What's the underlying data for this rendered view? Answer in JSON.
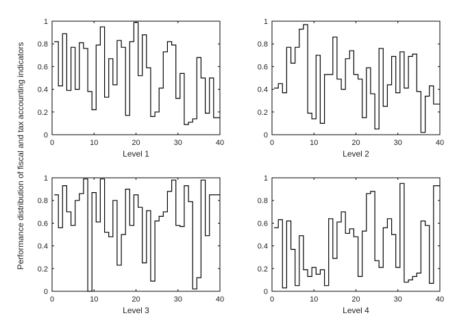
{
  "figure": {
    "ylabel": "Performance distribution of fiscal and tax accounting indicators"
  },
  "chart_data": [
    {
      "type": "line",
      "xlabel": "Level 1",
      "xlim": [
        0,
        40
      ],
      "ylim": [
        0,
        1
      ],
      "xticks": [
        0,
        10,
        20,
        30,
        40
      ],
      "yticks": [
        0,
        0.2,
        0.4,
        0.6,
        0.8,
        1
      ],
      "step": true,
      "x": [
        1,
        2,
        3,
        4,
        5,
        6,
        7,
        8,
        9,
        10,
        11,
        12,
        13,
        14,
        15,
        16,
        17,
        18,
        19,
        20,
        21,
        22,
        23,
        24,
        25,
        26,
        27,
        28,
        29,
        30,
        31,
        32,
        33,
        34,
        35,
        36,
        37,
        38,
        39,
        40
      ],
      "values": [
        0.82,
        0.43,
        0.89,
        0.39,
        0.77,
        0.4,
        0.81,
        0.76,
        0.38,
        0.22,
        0.79,
        0.95,
        0.33,
        0.67,
        0.44,
        0.83,
        0.77,
        0.17,
        0.82,
        0.99,
        0.52,
        0.88,
        0.59,
        0.16,
        0.2,
        0.41,
        0.73,
        0.82,
        0.79,
        0.32,
        0.54,
        0.09,
        0.11,
        0.14,
        0.68,
        0.5,
        0.19,
        0.5,
        0.15,
        0.15
      ]
    },
    {
      "type": "line",
      "xlabel": "Level 2",
      "xlim": [
        0,
        40
      ],
      "ylim": [
        0,
        1
      ],
      "xticks": [
        0,
        10,
        20,
        30,
        40
      ],
      "yticks": [
        0,
        0.2,
        0.4,
        0.6,
        0.8,
        1
      ],
      "step": true,
      "x": [
        1,
        2,
        3,
        4,
        5,
        6,
        7,
        8,
        9,
        10,
        11,
        12,
        13,
        14,
        15,
        16,
        17,
        18,
        19,
        20,
        21,
        22,
        23,
        24,
        25,
        26,
        27,
        28,
        29,
        30,
        31,
        32,
        33,
        34,
        35,
        36,
        37,
        38,
        39,
        40
      ],
      "values": [
        0.41,
        0.45,
        0.37,
        0.77,
        0.63,
        0.77,
        0.93,
        0.97,
        0.19,
        0.14,
        0.7,
        0.1,
        0.53,
        0.53,
        0.86,
        0.49,
        0.4,
        0.67,
        0.74,
        0.53,
        0.49,
        0.15,
        0.59,
        0.36,
        0.05,
        0.76,
        0.25,
        0.44,
        0.69,
        0.37,
        0.73,
        0.41,
        0.69,
        0.71,
        0.38,
        0.02,
        0.34,
        0.43,
        0.27,
        0.27
      ]
    },
    {
      "type": "line",
      "xlabel": "Level 3",
      "xlim": [
        0,
        40
      ],
      "ylim": [
        0,
        1
      ],
      "xticks": [
        0,
        10,
        20,
        30,
        40
      ],
      "yticks": [
        0,
        0.2,
        0.4,
        0.6,
        0.8,
        1
      ],
      "step": true,
      "x": [
        1,
        2,
        3,
        4,
        5,
        6,
        7,
        8,
        9,
        10,
        11,
        12,
        13,
        14,
        15,
        16,
        17,
        18,
        19,
        20,
        21,
        22,
        23,
        24,
        25,
        26,
        27,
        28,
        29,
        30,
        31,
        32,
        33,
        34,
        35,
        36,
        37,
        38,
        39,
        40
      ],
      "values": [
        0.85,
        0.56,
        0.93,
        0.7,
        0.58,
        0.8,
        0.86,
        0.99,
        0.0,
        0.87,
        0.61,
        0.99,
        0.52,
        0.48,
        0.8,
        0.23,
        0.5,
        0.9,
        0.58,
        0.85,
        0.74,
        0.25,
        0.71,
        0.09,
        0.62,
        0.66,
        0.7,
        0.88,
        0.98,
        0.58,
        0.57,
        0.93,
        0.79,
        0.02,
        0.12,
        0.98,
        0.49,
        0.85,
        0.85,
        0.85
      ]
    },
    {
      "type": "line",
      "xlabel": "Level 4",
      "xlim": [
        0,
        40
      ],
      "ylim": [
        0,
        1
      ],
      "xticks": [
        0,
        10,
        20,
        30,
        40
      ],
      "yticks": [
        0,
        0.2,
        0.4,
        0.6,
        0.8,
        1
      ],
      "step": true,
      "x": [
        1,
        2,
        3,
        4,
        5,
        6,
        7,
        8,
        9,
        10,
        11,
        12,
        13,
        14,
        15,
        16,
        17,
        18,
        19,
        20,
        21,
        22,
        23,
        24,
        25,
        26,
        27,
        28,
        29,
        30,
        31,
        32,
        33,
        34,
        35,
        36,
        37,
        38,
        39,
        40
      ],
      "values": [
        0.56,
        0.63,
        0.03,
        0.62,
        0.37,
        0.05,
        0.49,
        0.19,
        0.13,
        0.21,
        0.15,
        0.19,
        0.05,
        0.64,
        0.29,
        0.61,
        0.7,
        0.51,
        0.55,
        0.48,
        0.13,
        0.53,
        0.86,
        0.88,
        0.27,
        0.21,
        0.56,
        0.64,
        0.5,
        0.21,
        0.95,
        0.08,
        0.1,
        0.13,
        0.16,
        0.62,
        0.58,
        0.07,
        0.93,
        0.93
      ]
    }
  ]
}
